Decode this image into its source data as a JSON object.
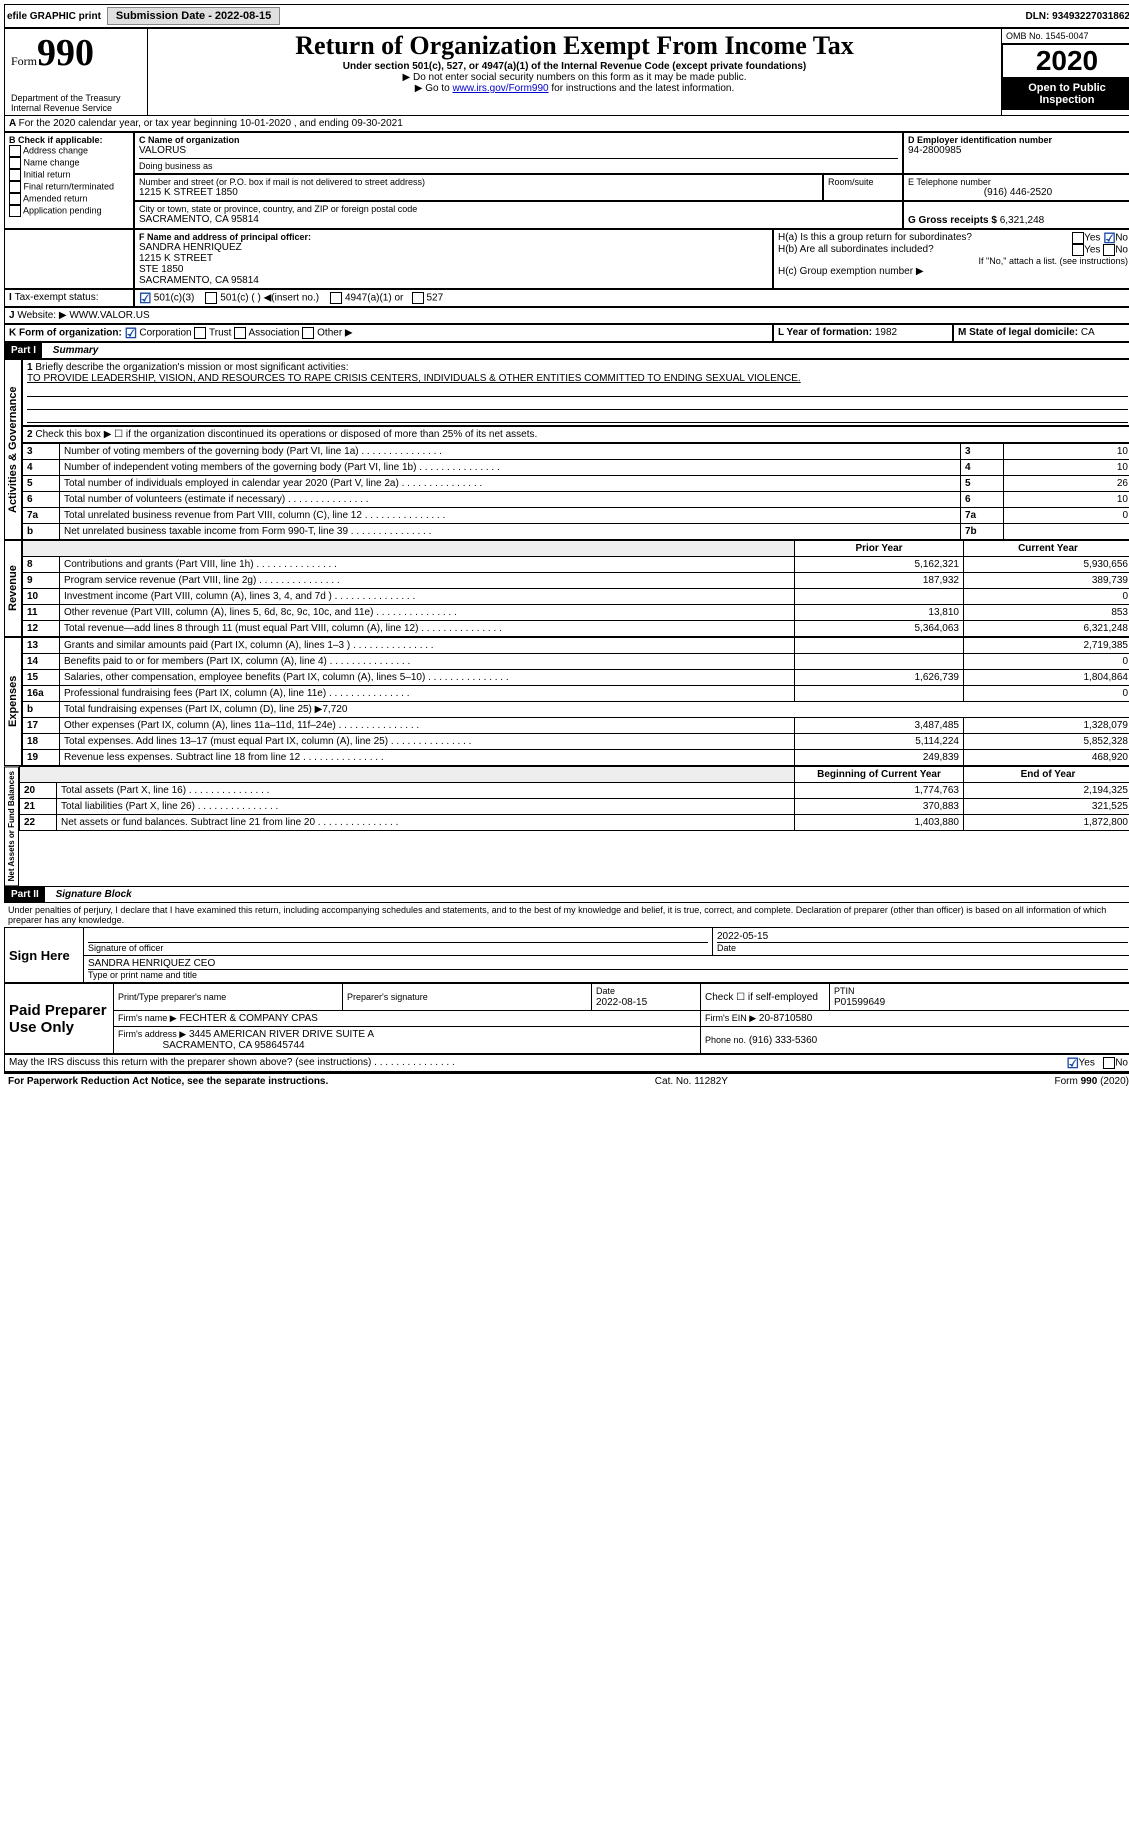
{
  "topbar": {
    "efile": "efile GRAPHIC print",
    "submission_label": "Submission Date - 2022-08-15",
    "dln_label": "DLN: 93493227031862"
  },
  "header": {
    "form_label": "Form",
    "form_num": "990",
    "title": "Return of Organization Exempt From Income Tax",
    "subtitle": "Under section 501(c), 527, or 4947(a)(1) of the Internal Revenue Code (except private foundations)",
    "instr1": "▶ Do not enter social security numbers on this form as it may be made public.",
    "instr2_pre": "▶ Go to ",
    "instr2_link": "www.irs.gov/Form990",
    "instr2_post": " for instructions and the latest information.",
    "dept": "Department of the Treasury",
    "irs": "Internal Revenue Service",
    "omb": "OMB No. 1545-0047",
    "year": "2020",
    "open": "Open to Public Inspection"
  },
  "A": {
    "line": "For the 2020 calendar year, or tax year beginning 10-01-2020   , and ending 09-30-2021"
  },
  "B": {
    "label": "B Check if applicable:",
    "items": [
      "Address change",
      "Name change",
      "Initial return",
      "Final return/terminated",
      "Amended return",
      "Application pending"
    ]
  },
  "C": {
    "name_label": "C Name of organization",
    "name": "VALORUS",
    "dba_label": "Doing business as",
    "addr_label": "Number and street (or P.O. box if mail is not delivered to street address)",
    "room_label": "Room/suite",
    "addr": "1215 K STREET 1850",
    "city_label": "City or town, state or province, country, and ZIP or foreign postal code",
    "city": "SACRAMENTO, CA  95814"
  },
  "D": {
    "label": "D Employer identification number",
    "value": "94-2800985"
  },
  "E": {
    "label": "E Telephone number",
    "value": "(916) 446-2520"
  },
  "G": {
    "label": "G Gross receipts $",
    "value": "6,321,248"
  },
  "F": {
    "label": "F  Name and address of principal officer:",
    "name": "SANDRA HENRIQUEZ",
    "l1": "1215 K STREET",
    "l2": "STE 1850",
    "l3": "SACRAMENTO, CA  95814"
  },
  "H": {
    "a": "H(a)  Is this a group return for subordinates?",
    "b": "H(b)  Are all subordinates included?",
    "b_note": "If \"No,\" attach a list. (see instructions)",
    "c": "H(c)  Group exemption number ▶",
    "yes": "Yes",
    "no": "No"
  },
  "I": {
    "label": "Tax-exempt status:",
    "o1": "501(c)(3)",
    "o2": "501(c) (  ) ◀(insert no.)",
    "o3": "4947(a)(1) or",
    "o4": "527"
  },
  "J": {
    "label": "Website: ▶",
    "value": "WWW.VALOR.US"
  },
  "K": {
    "label": "K Form of organization:",
    "o1": "Corporation",
    "o2": "Trust",
    "o3": "Association",
    "o4": "Other ▶"
  },
  "L": {
    "label": "L Year of formation:",
    "value": "1982"
  },
  "M": {
    "label": "M State of legal domicile:",
    "value": "CA"
  },
  "part1": {
    "hdr": "Part I",
    "title": "Summary"
  },
  "summary": {
    "q1": "Briefly describe the organization's mission or most significant activities:",
    "mission": "TO PROVIDE LEADERSHIP, VISION, AND RESOURCES TO RAPE CRISIS CENTERS, INDIVIDUALS & OTHER ENTITIES COMMITTED TO ENDING SEXUAL VIOLENCE.",
    "q2": "Check this box ▶ ☐ if the organization discontinued its operations or disposed of more than 25% of its net assets.",
    "rows_ag": [
      {
        "n": "3",
        "t": "Number of voting members of the governing body (Part VI, line 1a)",
        "box": "3",
        "v": "10"
      },
      {
        "n": "4",
        "t": "Number of independent voting members of the governing body (Part VI, line 1b)",
        "box": "4",
        "v": "10"
      },
      {
        "n": "5",
        "t": "Total number of individuals employed in calendar year 2020 (Part V, line 2a)",
        "box": "5",
        "v": "26"
      },
      {
        "n": "6",
        "t": "Total number of volunteers (estimate if necessary)",
        "box": "6",
        "v": "10"
      },
      {
        "n": "7a",
        "t": "Total unrelated business revenue from Part VIII, column (C), line 12",
        "box": "7a",
        "v": "0"
      },
      {
        "n": "b",
        "t": "Net unrelated business taxable income from Form 990-T, line 39",
        "box": "7b",
        "v": ""
      }
    ],
    "col_prior": "Prior Year",
    "col_current": "Current Year",
    "rev": [
      {
        "n": "8",
        "t": "Contributions and grants (Part VIII, line 1h)",
        "p": "5,162,321",
        "c": "5,930,656"
      },
      {
        "n": "9",
        "t": "Program service revenue (Part VIII, line 2g)",
        "p": "187,932",
        "c": "389,739"
      },
      {
        "n": "10",
        "t": "Investment income (Part VIII, column (A), lines 3, 4, and 7d )",
        "p": "",
        "c": "0"
      },
      {
        "n": "11",
        "t": "Other revenue (Part VIII, column (A), lines 5, 6d, 8c, 9c, 10c, and 11e)",
        "p": "13,810",
        "c": "853"
      },
      {
        "n": "12",
        "t": "Total revenue—add lines 8 through 11 (must equal Part VIII, column (A), line 12)",
        "p": "5,364,063",
        "c": "6,321,248"
      }
    ],
    "exp": [
      {
        "n": "13",
        "t": "Grants and similar amounts paid (Part IX, column (A), lines 1–3 )",
        "p": "",
        "c": "2,719,385"
      },
      {
        "n": "14",
        "t": "Benefits paid to or for members (Part IX, column (A), line 4)",
        "p": "",
        "c": "0"
      },
      {
        "n": "15",
        "t": "Salaries, other compensation, employee benefits (Part IX, column (A), lines 5–10)",
        "p": "1,626,739",
        "c": "1,804,864"
      },
      {
        "n": "16a",
        "t": "Professional fundraising fees (Part IX, column (A), line 11e)",
        "p": "",
        "c": "0"
      },
      {
        "n": "b",
        "t": "Total fundraising expenses (Part IX, column (D), line 25) ▶7,720",
        "p": null,
        "c": null
      },
      {
        "n": "17",
        "t": "Other expenses (Part IX, column (A), lines 11a–11d, 11f–24e)",
        "p": "3,487,485",
        "c": "1,328,079"
      },
      {
        "n": "18",
        "t": "Total expenses. Add lines 13–17 (must equal Part IX, column (A), line 25)",
        "p": "5,114,224",
        "c": "5,852,328"
      },
      {
        "n": "19",
        "t": "Revenue less expenses. Subtract line 18 from line 12",
        "p": "249,839",
        "c": "468,920"
      }
    ],
    "col_begin": "Beginning of Current Year",
    "col_end": "End of Year",
    "net": [
      {
        "n": "20",
        "t": "Total assets (Part X, line 16)",
        "p": "1,774,763",
        "c": "2,194,325"
      },
      {
        "n": "21",
        "t": "Total liabilities (Part X, line 26)",
        "p": "370,883",
        "c": "321,525"
      },
      {
        "n": "22",
        "t": "Net assets or fund balances. Subtract line 21 from line 20",
        "p": "1,403,880",
        "c": "1,872,800"
      }
    ],
    "vlabels": {
      "ag": "Activities & Governance",
      "rev": "Revenue",
      "exp": "Expenses",
      "net": "Net Assets or Fund Balances"
    }
  },
  "part2": {
    "hdr": "Part II",
    "title": "Signature Block"
  },
  "sig": {
    "perjury": "Under penalties of perjury, I declare that I have examined this return, including accompanying schedules and statements, and to the best of my knowledge and belief, it is true, correct, and complete. Declaration of preparer (other than officer) is based on all information of which preparer has any knowledge.",
    "sign_here": "Sign Here",
    "sig_officer": "Signature of officer",
    "date_label": "Date",
    "date": "2022-05-15",
    "name_title": "SANDRA HENRIQUEZ  CEO",
    "type_label": "Type or print name and title",
    "paid": "Paid Preparer Use Only",
    "prep_name_label": "Print/Type preparer's name",
    "prep_sig_label": "Preparer's signature",
    "prep_date_label": "Date",
    "prep_date": "2022-08-15",
    "self_emp": "Check ☐ if self-employed",
    "ptin_label": "PTIN",
    "ptin": "P01599649",
    "firm_name_label": "Firm's name    ▶",
    "firm_name": "FECHTER & COMPANY CPAS",
    "firm_ein_label": "Firm's EIN ▶",
    "firm_ein": "20-8710580",
    "firm_addr_label": "Firm's address ▶",
    "firm_addr1": "3445 AMERICAN RIVER DRIVE SUITE A",
    "firm_addr2": "SACRAMENTO, CA  958645744",
    "firm_phone_label": "Phone no.",
    "firm_phone": "(916) 333-5360",
    "discuss": "May the IRS discuss this return with the preparer shown above? (see instructions)",
    "yes": "Yes",
    "no": "No"
  },
  "footer": {
    "pra": "For Paperwork Reduction Act Notice, see the separate instructions.",
    "cat": "Cat. No. 11282Y",
    "form": "Form 990 (2020)"
  }
}
